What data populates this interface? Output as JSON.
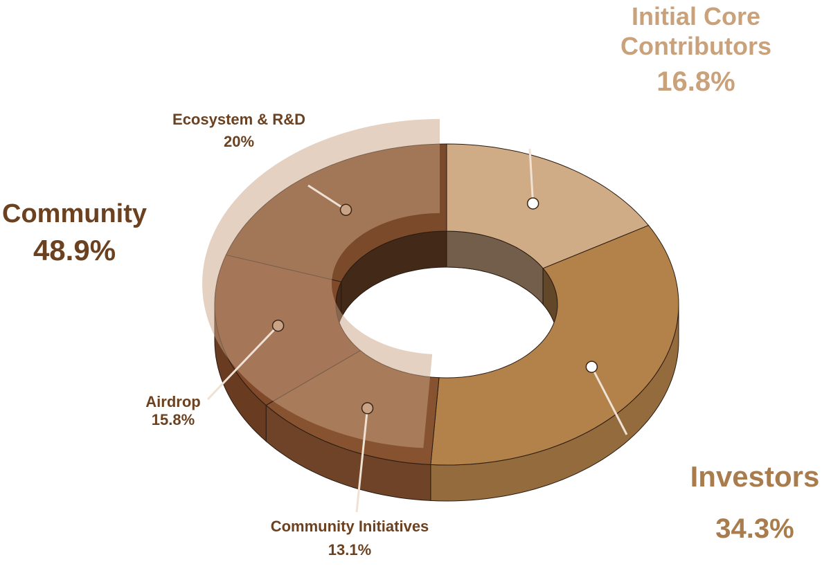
{
  "chart_data": {
    "type": "donut3d",
    "categories": [
      "Initial Core Contributors",
      "Investors",
      "Community Initiatives",
      "Airdrop",
      "Ecosystem & R&D"
    ],
    "values": [
      16.8,
      34.3,
      13.1,
      15.8,
      20
    ],
    "value_labels": [
      "16.8%",
      "34.3%",
      "13.1%",
      "15.8%",
      "20%"
    ],
    "colors": [
      "#cfab86",
      "#b3824a",
      "#86522f",
      "#80492a",
      "#7a4a2b"
    ],
    "groups": [
      {
        "name": "Community",
        "value": 48.9,
        "value_label": "48.9%"
      }
    ]
  }
}
